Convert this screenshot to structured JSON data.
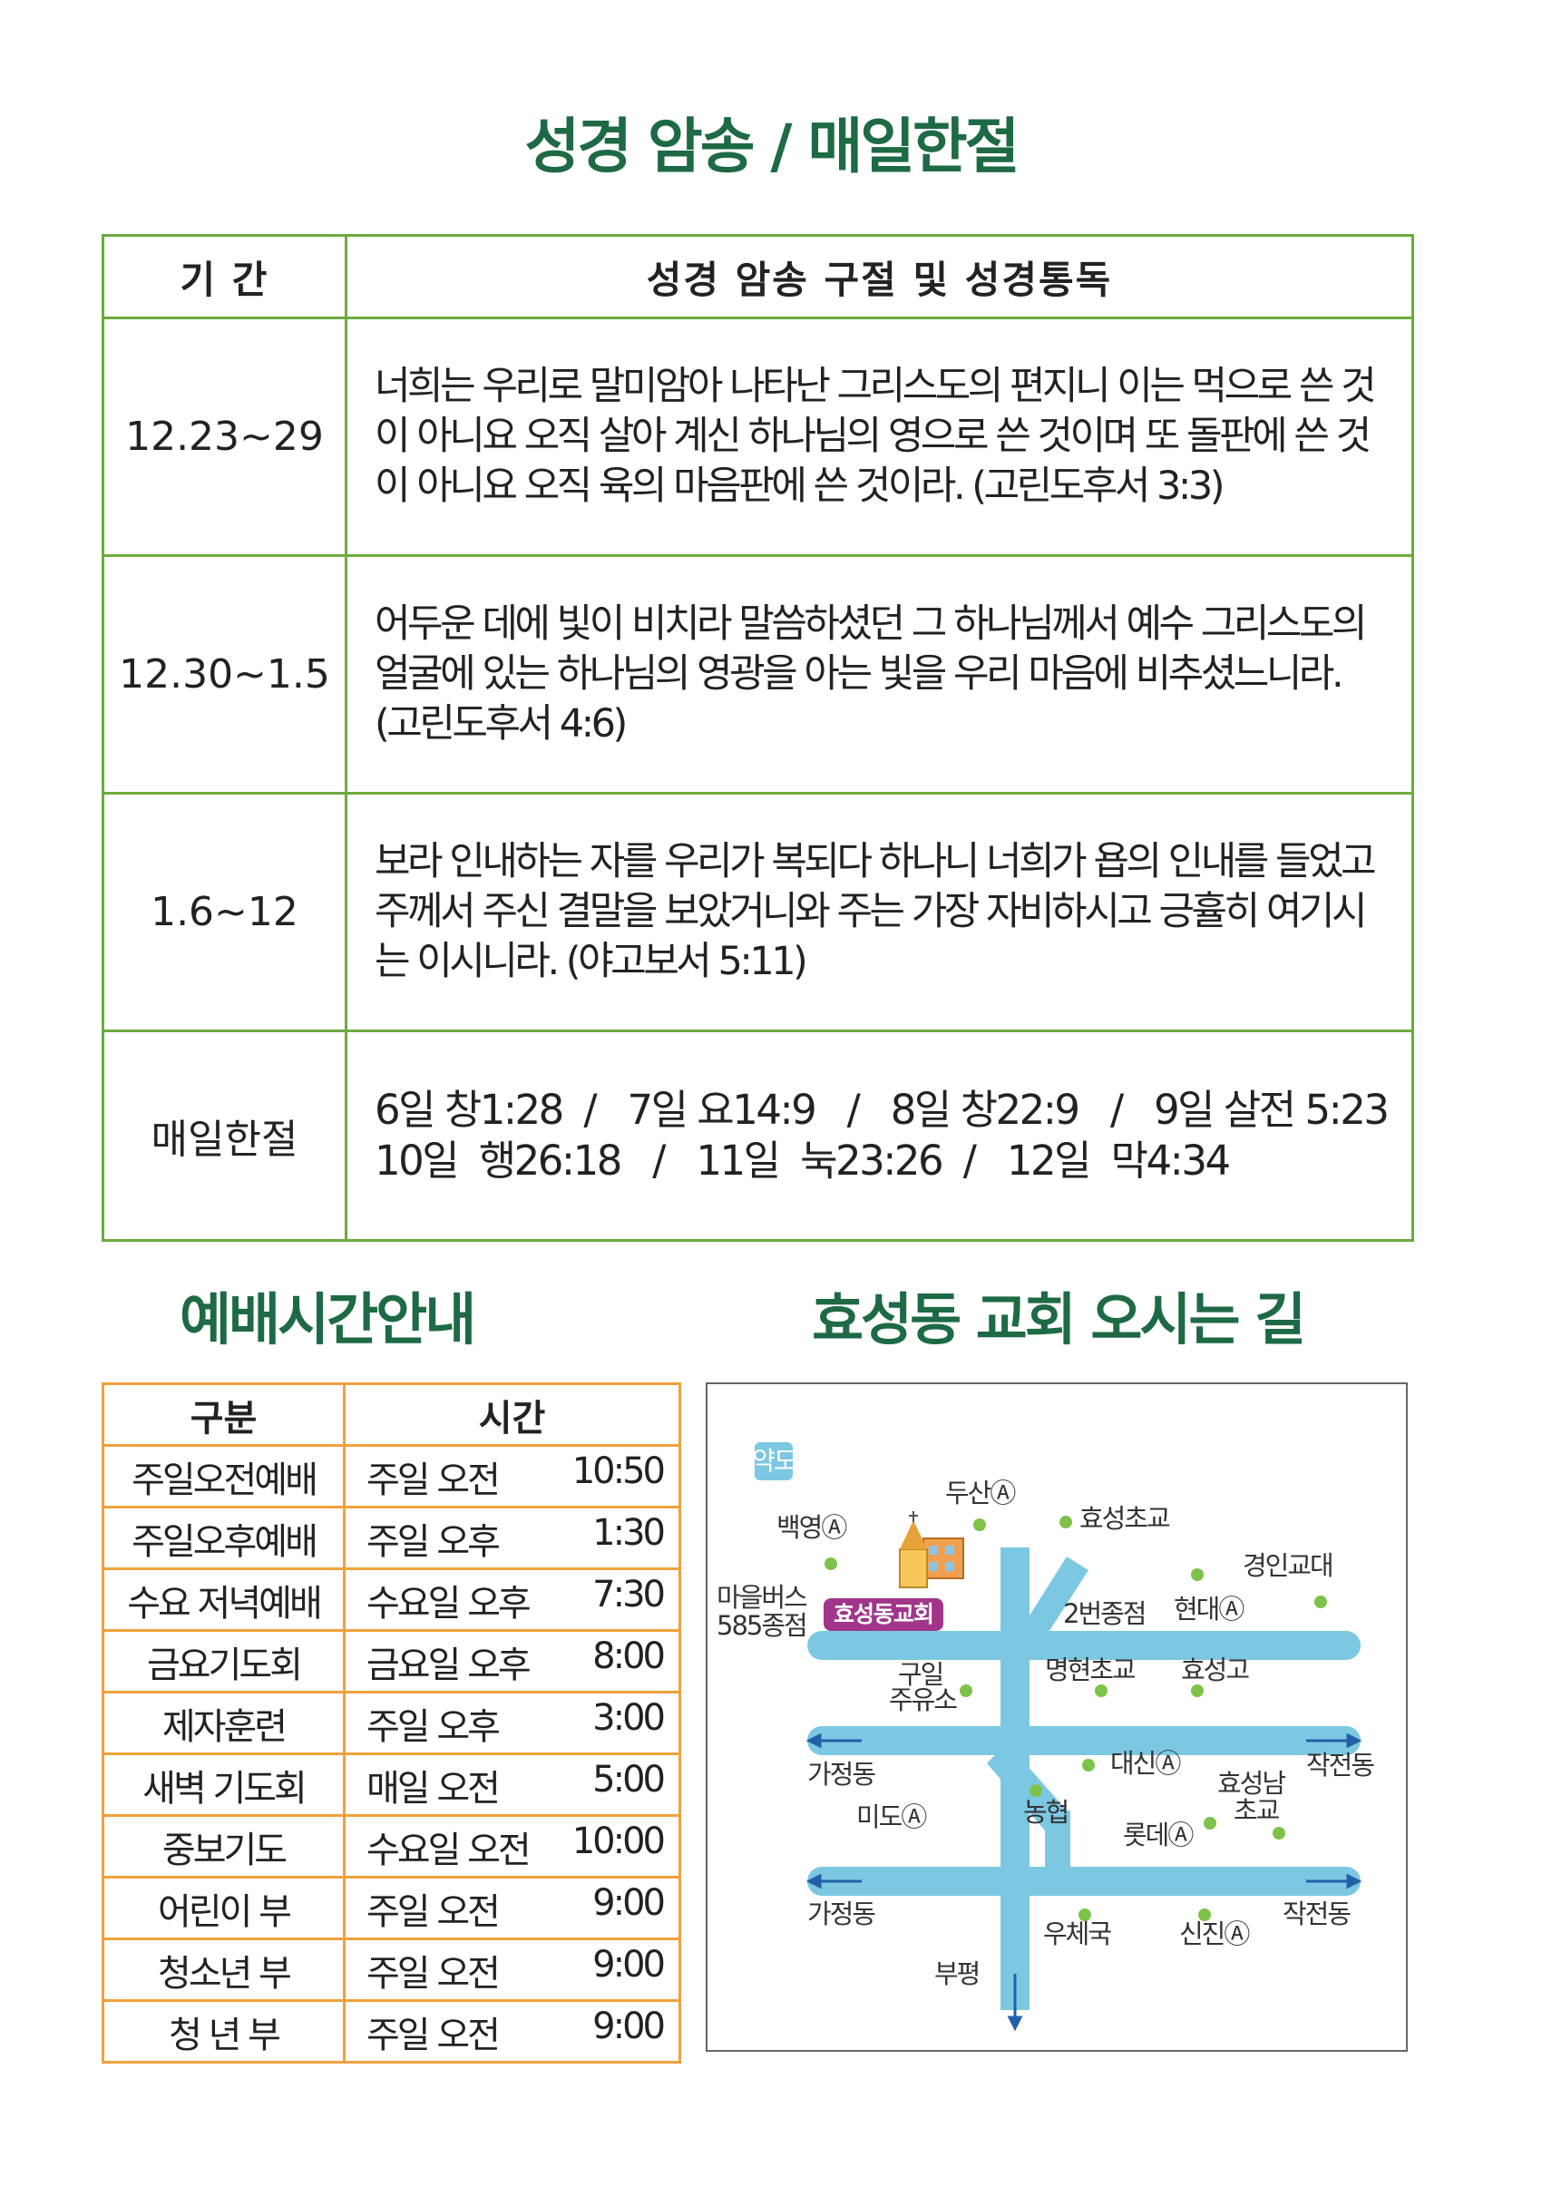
{
  "titles": {
    "verse": "성경 암송 / 매일한절",
    "worship": "예배시간안내",
    "directions": "효성동 교회 오시는 길"
  },
  "verse_table": {
    "headers": [
      "기 간",
      "성경 암송 구절 및 성경통독"
    ],
    "rows": [
      {
        "period": "12.23~29",
        "text": "너희는 우리로 말미암아 나타난 그리스도의 편지니 이는 먹으로 쓴 것이 아니요 오직 살아 계신 하나님의 영으로 쓴 것이며 또 돌판에 쓴 것이 아니요 오직 육의 마음판에 쓴 것이라. (고린도후서 3:3)"
      },
      {
        "period": "12.30~1.5",
        "text": "어두운 데에 빛이 비치라 말씀하셨던 그 하나님께서 예수 그리스도의 얼굴에 있는 하나님의 영광을 아는 빛을 우리 마음에 비추셨느니라. (고린도후서 4:6)"
      },
      {
        "period": "1.6~12",
        "text": "보라 인내하는 자를 우리가 복되다 하나니 너희가 욥의 인내를 들었고 주께서 주신 결말을 보았거니와 주는 가장 자비하시고 긍휼히 여기시는 이시니라. (야고보서 5:11)"
      }
    ],
    "daily": {
      "label": "매일한절",
      "line1": "6일 창1:28  /   7일 요14:9   /   8일 창22:9   /   9일 살전 5:23",
      "line2": "10일  행26:18   /   11일  눅23:26  /   12일  막4:34"
    }
  },
  "worship_table": {
    "headers": [
      "구분",
      "시간"
    ],
    "rows": [
      {
        "name": "주일오전예배",
        "when": "주일 오전",
        "time": "10:50"
      },
      {
        "name": "주일오후예배",
        "when": "주일 오후",
        "time": "1:30"
      },
      {
        "name": "수요 저녁예배",
        "when": "수요일 오후",
        "time": "7:30"
      },
      {
        "name": "금요기도회",
        "when": "금요일 오후",
        "time": "8:00"
      },
      {
        "name": "제자훈련",
        "when": "주일 오후",
        "time": "3:00"
      },
      {
        "name": "새벽 기도회",
        "when": "매일 오전",
        "time": "5:00"
      },
      {
        "name": "중보기도",
        "when": "수요일 오전",
        "time": "10:00"
      },
      {
        "name": "어린이 부",
        "when": "주일 오전",
        "time": "9:00"
      },
      {
        "name": "청소년 부",
        "when": "주일 오전",
        "time": "9:00"
      },
      {
        "name": "청 년 부",
        "when": "주일 오전",
        "time": "9:00"
      }
    ]
  },
  "map": {
    "badge": "약도",
    "church": "효성동교회",
    "labels": {
      "baekyeong": "백영Ⓐ",
      "doosan": "두산Ⓐ",
      "hyoseong_elem": "효성초교",
      "gyeongin": "경인교대",
      "hyundai": "현대Ⓐ",
      "bus_line1": "마을버스",
      "bus_line2": "585종점",
      "bus2": "2번종점",
      "guil_line1": "구일",
      "guil_line2": "주유소",
      "myeonghyeon": "명현초교",
      "hyoseong_high": "효성고",
      "gajeong1": "가정동",
      "daesin": "대신Ⓐ",
      "hyoseongnam_line1": "효성남",
      "hyoseongnam_line2": "초교",
      "jakjeon1": "작전동",
      "mido": "미도Ⓐ",
      "nonghyup": "농협",
      "lotte": "롯데Ⓐ",
      "gajeong2": "가정동",
      "jakjeon2": "작전동",
      "post": "우체국",
      "sinjin": "신진Ⓐ",
      "bupyeong": "부평"
    },
    "colors": {
      "road": "#7cc8e2",
      "arrow": "#2260a8",
      "dot": "#7ec24a",
      "church_tag": "#a0358a"
    }
  }
}
